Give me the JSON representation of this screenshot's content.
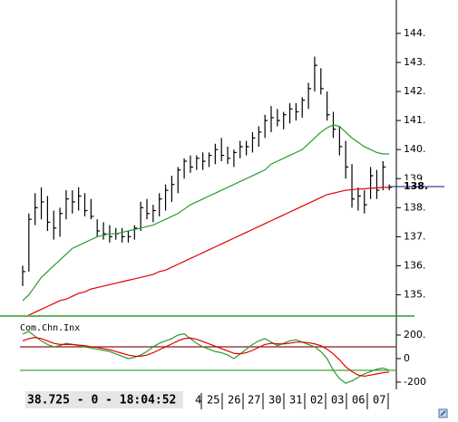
{
  "chart_data": [
    {
      "type": "ohlc",
      "high": [
        136.0,
        137.8,
        138.5,
        138.7,
        138.4,
        137.9,
        138.0,
        138.6,
        138.6,
        138.7,
        138.5,
        138.3,
        137.6,
        137.5,
        137.4,
        137.3,
        137.3,
        137.2,
        137.4,
        138.2,
        138.3,
        138.1,
        138.5,
        138.8,
        139.1,
        139.4,
        139.7,
        139.8,
        139.8,
        139.9,
        139.9,
        140.2,
        140.4,
        140.1,
        140.0,
        140.3,
        140.3,
        140.6,
        140.8,
        141.2,
        141.5,
        141.4,
        141.3,
        141.6,
        141.6,
        141.8,
        142.3,
        143.2,
        142.8,
        142.0,
        141.3,
        140.8,
        140.3,
        139.5,
        138.7,
        138.6,
        139.4,
        139.3,
        139.6,
        138.8
      ],
      "low": [
        135.3,
        135.8,
        137.4,
        137.6,
        137.2,
        136.9,
        137.0,
        137.6,
        137.8,
        137.9,
        137.7,
        137.6,
        137.0,
        136.9,
        136.8,
        136.9,
        136.8,
        136.8,
        136.9,
        137.2,
        137.6,
        137.5,
        137.7,
        137.9,
        138.2,
        138.5,
        139.0,
        139.2,
        139.3,
        139.3,
        139.4,
        139.5,
        139.6,
        139.5,
        139.4,
        139.7,
        139.8,
        139.9,
        140.1,
        140.4,
        140.6,
        140.8,
        140.7,
        140.9,
        141.0,
        141.1,
        141.4,
        142.0,
        141.9,
        141.0,
        140.4,
        139.8,
        139.0,
        138.0,
        137.9,
        137.8,
        138.3,
        138.3,
        138.6,
        138.6
      ],
      "close": [
        135.8,
        137.6,
        138.0,
        138.2,
        137.5,
        137.3,
        137.8,
        138.3,
        138.2,
        138.4,
        137.9,
        137.7,
        137.2,
        137.1,
        137.0,
        137.1,
        137.0,
        137.0,
        137.3,
        138.0,
        137.8,
        137.9,
        138.3,
        138.6,
        138.8,
        139.3,
        139.6,
        139.4,
        139.7,
        139.6,
        139.8,
        140.0,
        139.8,
        139.7,
        139.9,
        140.1,
        140.1,
        140.4,
        140.6,
        141.0,
        141.1,
        141.0,
        141.2,
        141.4,
        141.3,
        141.7,
        142.1,
        142.9,
        142.1,
        141.2,
        140.7,
        140.1,
        139.4,
        138.3,
        138.4,
        138.1,
        139.1,
        138.6,
        139.4,
        138.7
      ],
      "bar_color": "#000000",
      "series": [
        {
          "color": "#2a9a2a",
          "values": [
            134.8,
            135.0,
            135.3,
            135.6,
            135.8,
            136.0,
            136.2,
            136.4,
            136.6,
            136.7,
            136.8,
            136.9,
            137.0,
            137.05,
            137.1,
            137.1,
            137.15,
            137.2,
            137.25,
            137.3,
            137.35,
            137.4,
            137.5,
            137.6,
            137.7,
            137.8,
            137.95,
            138.1,
            138.2,
            138.3,
            138.4,
            138.5,
            138.6,
            138.7,
            138.8,
            138.9,
            139.0,
            139.1,
            139.2,
            139.3,
            139.5,
            139.6,
            139.7,
            139.8,
            139.9,
            140.0,
            140.2,
            140.4,
            140.6,
            140.75,
            140.85,
            140.8,
            140.6,
            140.4,
            140.25,
            140.1,
            140.0,
            139.9,
            139.85,
            139.85
          ]
        },
        {
          "color": "#e00000",
          "values": [
            134.2,
            134.3,
            134.4,
            134.5,
            134.6,
            134.7,
            134.8,
            134.85,
            134.95,
            135.05,
            135.1,
            135.2,
            135.25,
            135.3,
            135.35,
            135.4,
            135.45,
            135.5,
            135.55,
            135.6,
            135.65,
            135.7,
            135.8,
            135.85,
            135.95,
            136.05,
            136.15,
            136.25,
            136.35,
            136.45,
            136.55,
            136.65,
            136.75,
            136.85,
            136.95,
            137.05,
            137.15,
            137.25,
            137.35,
            137.45,
            137.55,
            137.65,
            137.75,
            137.85,
            137.95,
            138.05,
            138.15,
            138.25,
            138.35,
            138.45,
            138.5,
            138.55,
            138.6,
            138.62,
            138.64,
            138.65,
            138.67,
            138.68,
            138.7,
            138.7
          ]
        }
      ],
      "ylim": [
        134.3,
        145.15
      ],
      "yticks": [
        {
          "value": 144,
          "label": "144."
        },
        {
          "value": 143,
          "label": "143."
        },
        {
          "value": 142,
          "label": "142."
        },
        {
          "value": 141,
          "label": "141."
        },
        {
          "value": 140,
          "label": "140."
        },
        139,
        {
          "value": 138,
          "label": "138."
        },
        {
          "value": 137,
          "label": "137."
        },
        {
          "value": 136,
          "label": "136."
        },
        {
          "value": 135,
          "label": "135."
        }
      ],
      "last_price": {
        "value": 138.725,
        "label": "138.",
        "color": "#1a2a8a"
      }
    },
    {
      "type": "line",
      "title": "Com.Chn.Inx",
      "series": [
        {
          "color": "#2a9a2a",
          "values": [
            210,
            230,
            190,
            150,
            120,
            100,
            110,
            130,
            120,
            110,
            100,
            90,
            80,
            70,
            60,
            40,
            20,
            0,
            10,
            30,
            60,
            100,
            130,
            150,
            170,
            200,
            210,
            170,
            130,
            100,
            80,
            60,
            50,
            30,
            0,
            40,
            80,
            120,
            150,
            170,
            140,
            110,
            130,
            150,
            160,
            140,
            120,
            100,
            60,
            0,
            -100,
            -170,
            -210,
            -190,
            -160,
            -130,
            -110,
            -90,
            -80,
            -100
          ]
        },
        {
          "color": "#e00000",
          "values": [
            150,
            170,
            180,
            170,
            150,
            130,
            120,
            120,
            120,
            115,
            110,
            100,
            95,
            85,
            75,
            60,
            45,
            30,
            20,
            20,
            30,
            50,
            75,
            100,
            125,
            150,
            170,
            175,
            165,
            145,
            125,
            105,
            85,
            65,
            45,
            40,
            50,
            70,
            95,
            120,
            130,
            125,
            125,
            130,
            140,
            140,
            135,
            125,
            110,
            80,
            40,
            -10,
            -70,
            -110,
            -140,
            -150,
            -140,
            -130,
            -120,
            -115
          ]
        }
      ],
      "ylim": [
        -262,
        354
      ],
      "yticks": [
        {
          "value": 200,
          "label": "200."
        },
        0,
        -200
      ],
      "levels": [
        {
          "value": 100,
          "color": "#8b1a1a"
        },
        {
          "value": -100,
          "color": "#2a9a2a"
        }
      ]
    }
  ],
  "status": "38.725 - 0 - 18:04:52",
  "dates": [
    "4",
    "25",
    "26",
    "27",
    "30",
    "31",
    "02",
    "03",
    "06",
    "07"
  ]
}
